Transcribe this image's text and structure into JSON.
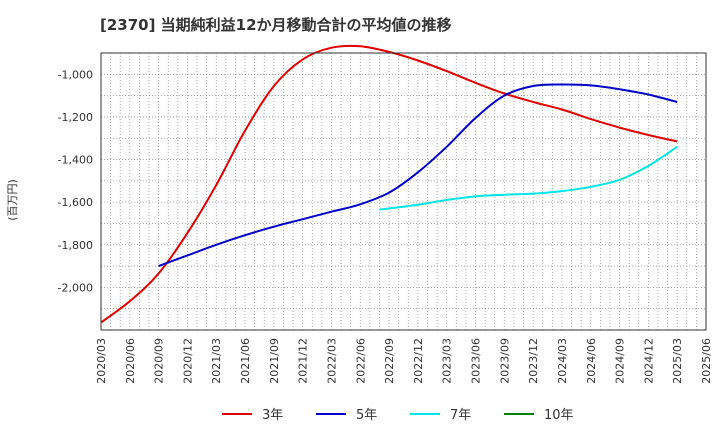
{
  "chart_data": {
    "type": "line",
    "title": "[2370]  当期純利益12か月移動合計の平均値の推移",
    "ylabel": "(百万円)",
    "xlabel": "",
    "xlim": [
      "2020-03",
      "2025-06"
    ],
    "ylim": [
      -2200,
      -900
    ],
    "yticks": [
      -1000,
      -1200,
      -1400,
      -1600,
      -1800,
      -2000
    ],
    "ytick_labels": [
      "-1,000",
      "-1,200",
      "-1,400",
      "-1,600",
      "-1,800",
      "-2,000"
    ],
    "xtick_labels": [
      "2020/03",
      "2020/06",
      "2020/09",
      "2020/12",
      "2021/03",
      "2021/06",
      "2021/09",
      "2021/12",
      "2022/03",
      "2022/06",
      "2022/09",
      "2022/12",
      "2023/03",
      "2023/06",
      "2023/09",
      "2023/12",
      "2024/03",
      "2024/06",
      "2024/09",
      "2024/12",
      "2025/03",
      "2025/06"
    ],
    "grid": true,
    "legend_position": "bottom",
    "series": [
      {
        "name": "3年",
        "color": "#e00000",
        "x": [
          "2020-03",
          "2020-06",
          "2020-09",
          "2020-12",
          "2021-03",
          "2021-06",
          "2021-09",
          "2021-12",
          "2022-03",
          "2022-06",
          "2022-09",
          "2022-12",
          "2023-03",
          "2023-06",
          "2023-09",
          "2023-12",
          "2024-03",
          "2024-06",
          "2024-09",
          "2024-12",
          "2025-03"
        ],
        "y": [
          -2165,
          -2065,
          -1935,
          -1745,
          -1520,
          -1265,
          -1055,
          -930,
          -875,
          -868,
          -895,
          -935,
          -985,
          -1040,
          -1090,
          -1130,
          -1165,
          -1210,
          -1250,
          -1285,
          -1315
        ]
      },
      {
        "name": "5年",
        "color": "#0000c8",
        "x": [
          "2020-09",
          "2020-12",
          "2021-03",
          "2021-06",
          "2021-09",
          "2021-12",
          "2022-03",
          "2022-06",
          "2022-09",
          "2022-12",
          "2023-03",
          "2023-06",
          "2023-09",
          "2023-12",
          "2024-03",
          "2024-06",
          "2024-09",
          "2024-12",
          "2025-03"
        ],
        "y": [
          -1900,
          -1850,
          -1800,
          -1755,
          -1715,
          -1680,
          -1645,
          -1610,
          -1555,
          -1460,
          -1340,
          -1205,
          -1100,
          -1055,
          -1048,
          -1052,
          -1070,
          -1095,
          -1130
        ]
      },
      {
        "name": "7年",
        "color": "#00e5e5",
        "x": [
          "2022-08",
          "2022-12",
          "2023-03",
          "2023-06",
          "2023-09",
          "2023-12",
          "2024-03",
          "2024-06",
          "2024-09",
          "2024-12",
          "2025-03"
        ],
        "y": [
          -1635,
          -1612,
          -1590,
          -1573,
          -1565,
          -1560,
          -1548,
          -1528,
          -1495,
          -1430,
          -1340
        ]
      },
      {
        "name": "10年",
        "color": "#008000",
        "x": [],
        "y": []
      }
    ]
  }
}
